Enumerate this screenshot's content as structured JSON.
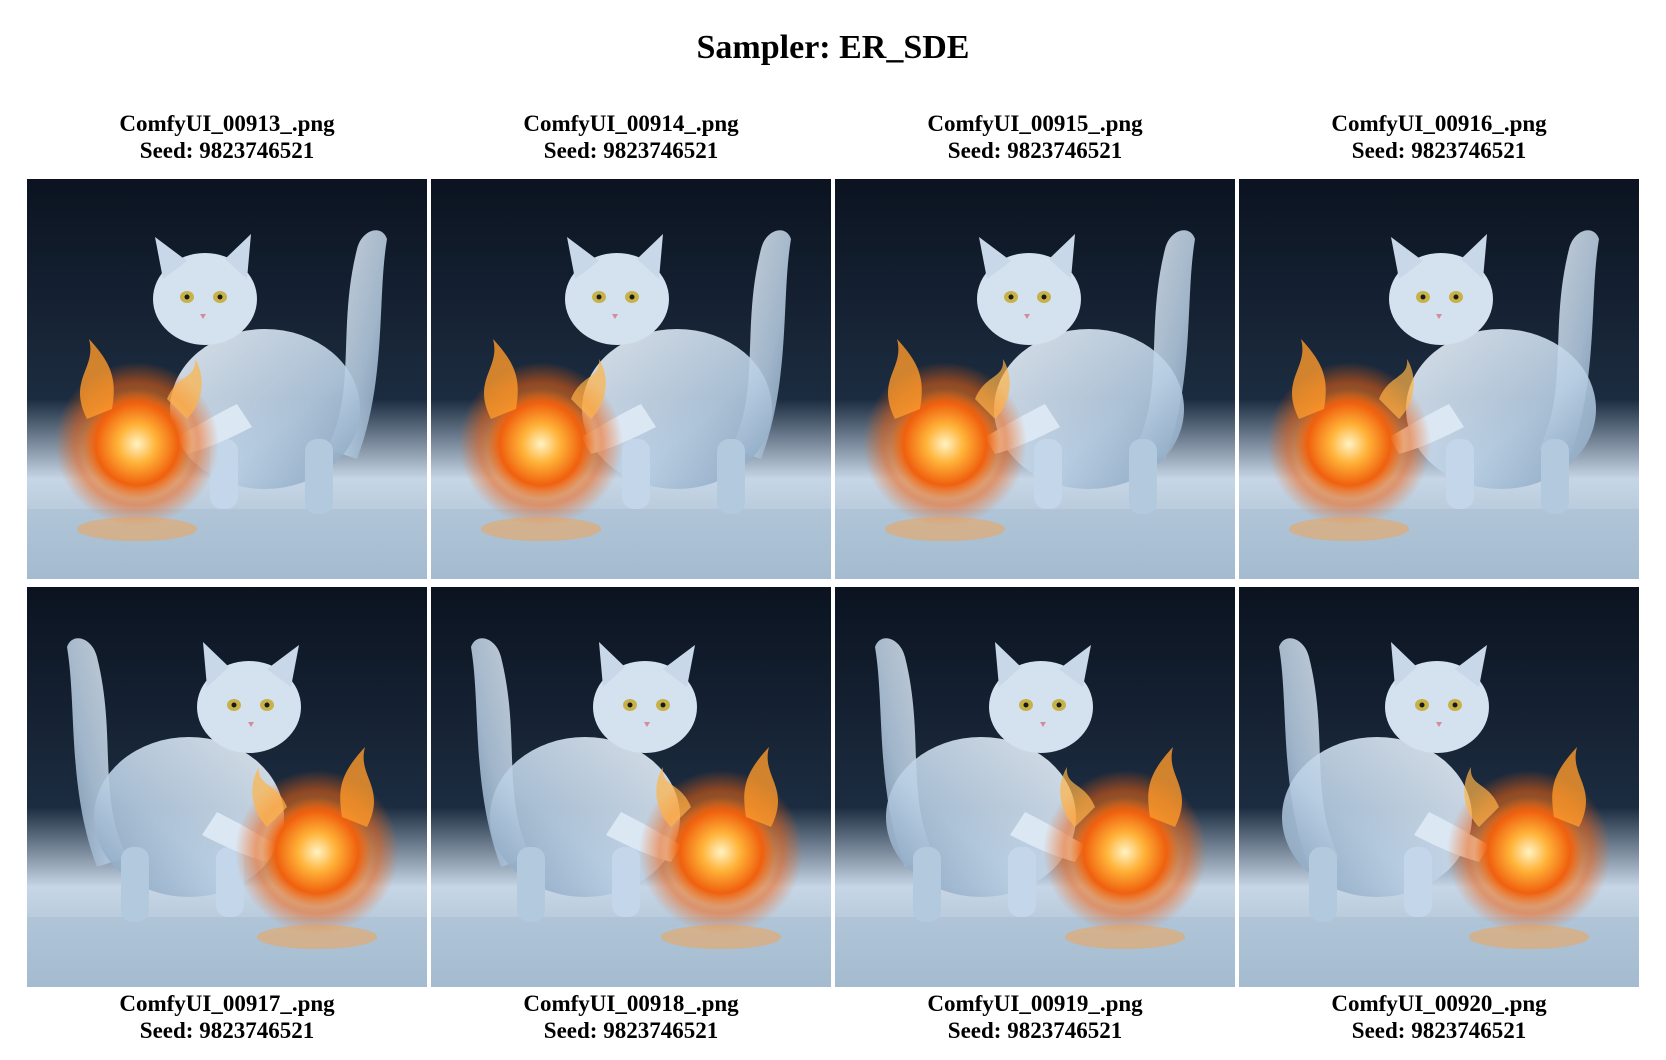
{
  "title": "Sampler: ER_SDE",
  "seed_prefix": "Seed: ",
  "images": [
    {
      "filename": "ComfyUI_00913_.png",
      "seed": "Seed: 9823746521",
      "ball_side": "left"
    },
    {
      "filename": "ComfyUI_00914_.png",
      "seed": "Seed: 9823746521",
      "ball_side": "left"
    },
    {
      "filename": "ComfyUI_00915_.png",
      "seed": "Seed: 9823746521",
      "ball_side": "left"
    },
    {
      "filename": "ComfyUI_00916_.png",
      "seed": "Seed: 9823746521",
      "ball_side": "left"
    },
    {
      "filename": "ComfyUI_00917_.png",
      "seed": "Seed: 9823746521",
      "ball_side": "right"
    },
    {
      "filename": "ComfyUI_00918_.png",
      "seed": "Seed: 9823746521",
      "ball_side": "right"
    },
    {
      "filename": "ComfyUI_00919_.png",
      "seed": "Seed: 9823746521",
      "ball_side": "right"
    },
    {
      "filename": "ComfyUI_00920_.png",
      "seed": "Seed: 9823746521",
      "ball_side": "right"
    }
  ],
  "colors": {
    "background": "#ffffff",
    "scene_dark": "#0d1622",
    "ice": "#c9dcef",
    "fire": "#ff8a1c"
  }
}
